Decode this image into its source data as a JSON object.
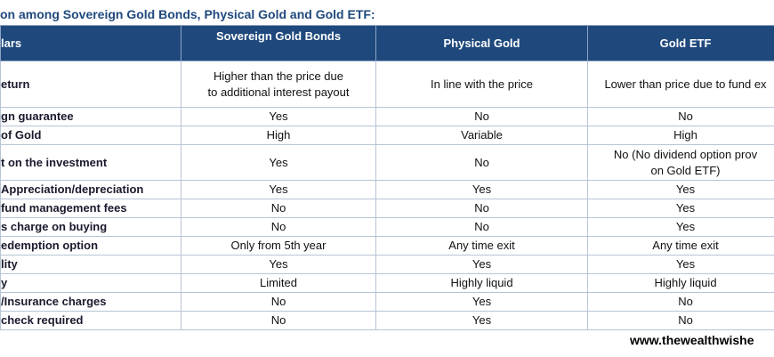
{
  "title": "on among Sovereign Gold Bonds, Physical Gold and Gold ETF:",
  "table": {
    "header": [
      "lars",
      "Sovereign Gold Bonds",
      "Physical Gold",
      "Gold ETF"
    ],
    "rows": [
      [
        "eturn",
        "Higher than the price due\nto additional interest payout",
        "In line with the price",
        "Lower than price due to fund ex"
      ],
      [
        "gn guarantee",
        "Yes",
        "No",
        "No"
      ],
      [
        "of Gold",
        "High",
        "Variable",
        "High"
      ],
      [
        "t on the investment",
        "Yes",
        "No",
        "No (No dividend option prov\non Gold ETF)"
      ],
      [
        "Appreciation/depreciation",
        "Yes",
        "Yes",
        "Yes"
      ],
      [
        "fund management fees",
        "No",
        "No",
        "Yes"
      ],
      [
        "s charge on buying",
        "No",
        "No",
        "Yes"
      ],
      [
        "edemption option",
        "Only from 5th year",
        "Any time exit",
        "Any time exit"
      ],
      [
        "lity",
        "Yes",
        "Yes",
        "Yes"
      ],
      [
        "y",
        "Limited",
        "Highly liquid",
        "Highly liquid"
      ],
      [
        "/Insurance charges",
        "No",
        "Yes",
        "No"
      ],
      [
        "check required",
        "No",
        "Yes",
        "No"
      ]
    ]
  },
  "footer": "www.thewealthwishe"
}
